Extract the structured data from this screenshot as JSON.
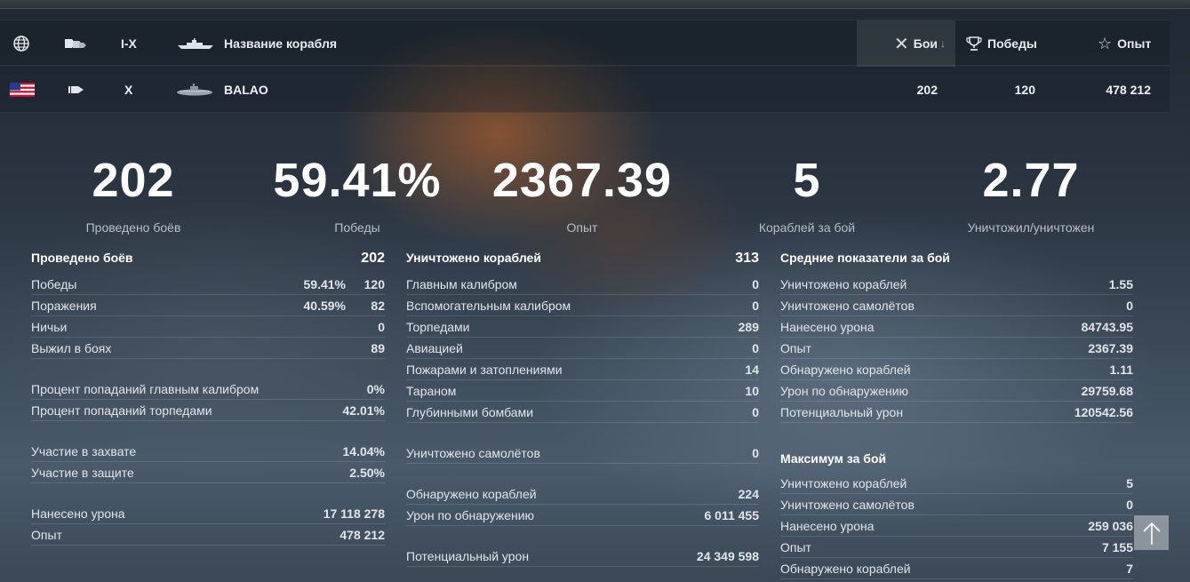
{
  "header": {
    "tier": "I-X",
    "ship_name": "Название корабля",
    "battles": "Бои",
    "wins": "Победы",
    "exp": "Опыт"
  },
  "ship_row": {
    "tier": "X",
    "name": "BALAO",
    "battles": "202",
    "wins": "120",
    "exp": "478 212"
  },
  "summary": [
    {
      "value": "202",
      "label": "Проведено боёв"
    },
    {
      "value": "59.41%",
      "label": "Победы"
    },
    {
      "value": "2367.39",
      "label": "Опыт"
    },
    {
      "value": "5",
      "label": "Кораблей за бой"
    },
    {
      "value": "2.77",
      "label": "Уничтожил/уничтожен"
    }
  ],
  "col1": {
    "head": {
      "label": "Проведено боёв",
      "value": "202"
    },
    "wins": {
      "label": "Победы",
      "pct": "59.41%",
      "value": "120"
    },
    "losses": {
      "label": "Поражения",
      "pct": "40.59%",
      "value": "82"
    },
    "draws": {
      "label": "Ничьи",
      "value": "0"
    },
    "survived": {
      "label": "Выжил в боях",
      "value": "89"
    },
    "main_hit": {
      "label": "Процент попаданий главным калибром",
      "value": "0%"
    },
    "torp_hit": {
      "label": "Процент попаданий торпедами",
      "value": "42.01%"
    },
    "capture": {
      "label": "Участие в захвате",
      "value": "14.04%"
    },
    "defense": {
      "label": "Участие в защите",
      "value": "2.50%"
    },
    "damage": {
      "label": "Нанесено урона",
      "value": "17 118 278"
    },
    "exp": {
      "label": "Опыт",
      "value": "478 212"
    }
  },
  "col2": {
    "head": {
      "label": "Уничтожено кораблей",
      "value": "313"
    },
    "items": [
      {
        "label": "Главным калибром",
        "value": "0"
      },
      {
        "label": "Вспомогательным калибром",
        "value": "0"
      },
      {
        "label": "Торпедами",
        "value": "289"
      },
      {
        "label": "Авиацией",
        "value": "0"
      },
      {
        "label": "Пожарами и затоплениями",
        "value": "14"
      },
      {
        "label": "Тараном",
        "value": "10"
      },
      {
        "label": "Глубинными бомбами",
        "value": "0"
      }
    ],
    "planes": {
      "label": "Уничтожено самолётов",
      "value": "0"
    },
    "spotted": {
      "label": "Обнаружено кораблей",
      "value": "224"
    },
    "spot_dmg": {
      "label": "Урон по обнаружению",
      "value": "6 011 455"
    },
    "potential": {
      "label": "Потенциальный урон",
      "value": "24 349 598"
    }
  },
  "col3": {
    "avg_head": "Средние показатели за бой",
    "avg": [
      {
        "label": "Уничтожено кораблей",
        "value": "1.55"
      },
      {
        "label": "Уничтожено самолётов",
        "value": "0"
      },
      {
        "label": "Нанесено урона",
        "value": "84743.95"
      },
      {
        "label": "Опыт",
        "value": "2367.39"
      },
      {
        "label": "Обнаружено кораблей",
        "value": "1.11"
      },
      {
        "label": "Урон по обнаружению",
        "value": "29759.68"
      },
      {
        "label": "Потенциальный урон",
        "value": "120542.56"
      }
    ],
    "max_head": "Максимум за бой",
    "max": [
      {
        "label": "Уничтожено кораблей",
        "value": "5"
      },
      {
        "label": "Уничтожено самолётов",
        "value": "0"
      },
      {
        "label": "Нанесено урона",
        "value": "259 036"
      },
      {
        "label": "Опыт",
        "value": "7 155"
      },
      {
        "label": "Обнаружено кораблей",
        "value": "7"
      }
    ]
  },
  "icons": {
    "globe": "globe-icon",
    "type": "ship-type-icon",
    "ship": "ship-silhouette-icon",
    "battles": "crossed-swords-icon",
    "wins": "trophy-icon",
    "exp": "star-icon",
    "flag": "usa-flag-icon",
    "submarine": "submarine-class-icon",
    "scroll": "arrow-up-icon"
  },
  "colors": {
    "accent": "#ffffff",
    "muted": "#b7bfc8"
  }
}
